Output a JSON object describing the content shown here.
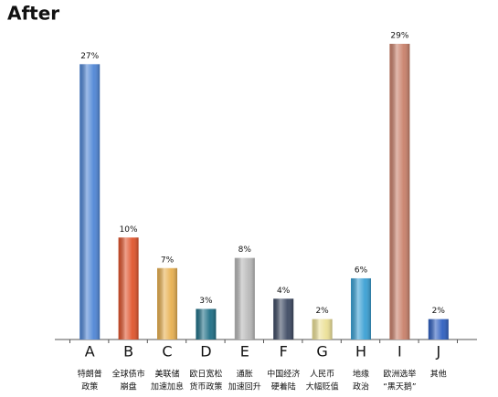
{
  "chart_data": {
    "type": "bar",
    "title": "After",
    "categories": [
      "A",
      "B",
      "C",
      "D",
      "E",
      "F",
      "G",
      "H",
      "I",
      "J"
    ],
    "descriptions": [
      [
        "特朗普",
        "政策"
      ],
      [
        "全球债市",
        "崩盘"
      ],
      [
        "美联储",
        "加速加息"
      ],
      [
        "欧日宽松",
        "货币政策"
      ],
      [
        "通胀",
        "加速回升"
      ],
      [
        "中国经济",
        "硬着陆"
      ],
      [
        "人民币",
        "大幅贬值"
      ],
      [
        "地缘",
        "政治"
      ],
      [
        "欧洲选举",
        "“黑天鹅”"
      ],
      [
        "其他"
      ]
    ],
    "values": [
      27,
      10,
      7,
      3,
      8,
      4,
      2,
      6,
      29,
      2
    ],
    "value_labels": [
      "27%",
      "10%",
      "7%",
      "3%",
      "8%",
      "4%",
      "2%",
      "6%",
      "29%",
      "2%"
    ],
    "colors": [
      "#4f86d6",
      "#e0542c",
      "#e8b050",
      "#1f6f86",
      "#b8b8b8",
      "#3e4a63",
      "#ece096",
      "#3aa0d4",
      "#c9806a",
      "#2f5fc0"
    ]
  }
}
